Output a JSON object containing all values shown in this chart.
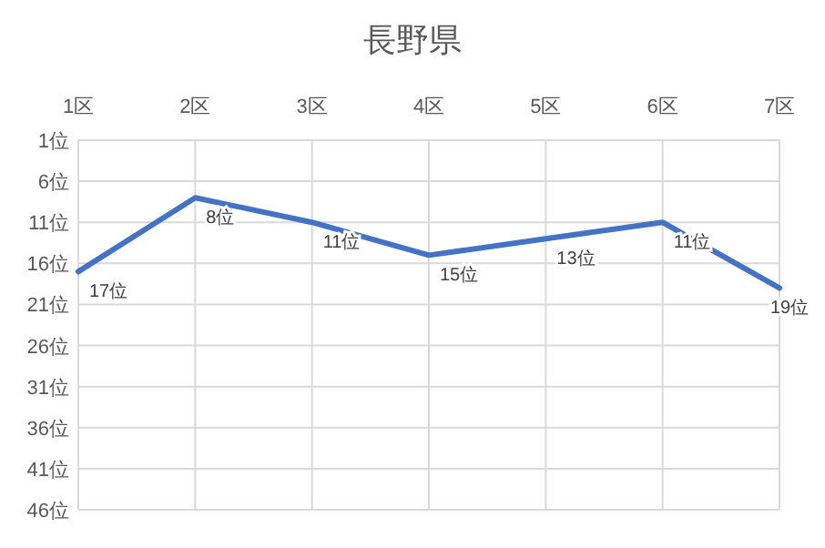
{
  "chart_data": {
    "type": "line",
    "title": "長野県",
    "categories": [
      "1区",
      "2区",
      "3区",
      "4区",
      "5区",
      "6区",
      "7区"
    ],
    "series": [
      {
        "color": "#4472c4",
        "values": [
          17,
          8,
          11,
          15,
          13,
          11,
          19
        ],
        "value_labels": [
          "17位",
          "8位",
          "11位",
          "15位",
          "13位",
          "11位",
          "19位"
        ]
      }
    ],
    "ylim": [
      46,
      1
    ],
    "yticks": [
      {
        "value": 1,
        "label": "1位"
      },
      {
        "value": 6,
        "label": "6位"
      },
      {
        "value": 11,
        "label": "11位"
      },
      {
        "value": 16,
        "label": "16位"
      },
      {
        "value": 21,
        "label": "21位"
      },
      {
        "value": 26,
        "label": "26位"
      },
      {
        "value": 31,
        "label": "31位"
      },
      {
        "value": 36,
        "label": "36位"
      },
      {
        "value": 41,
        "label": "41位"
      },
      {
        "value": 46,
        "label": "46位"
      }
    ],
    "grid": true,
    "marker": "none",
    "line_style": "solid"
  }
}
